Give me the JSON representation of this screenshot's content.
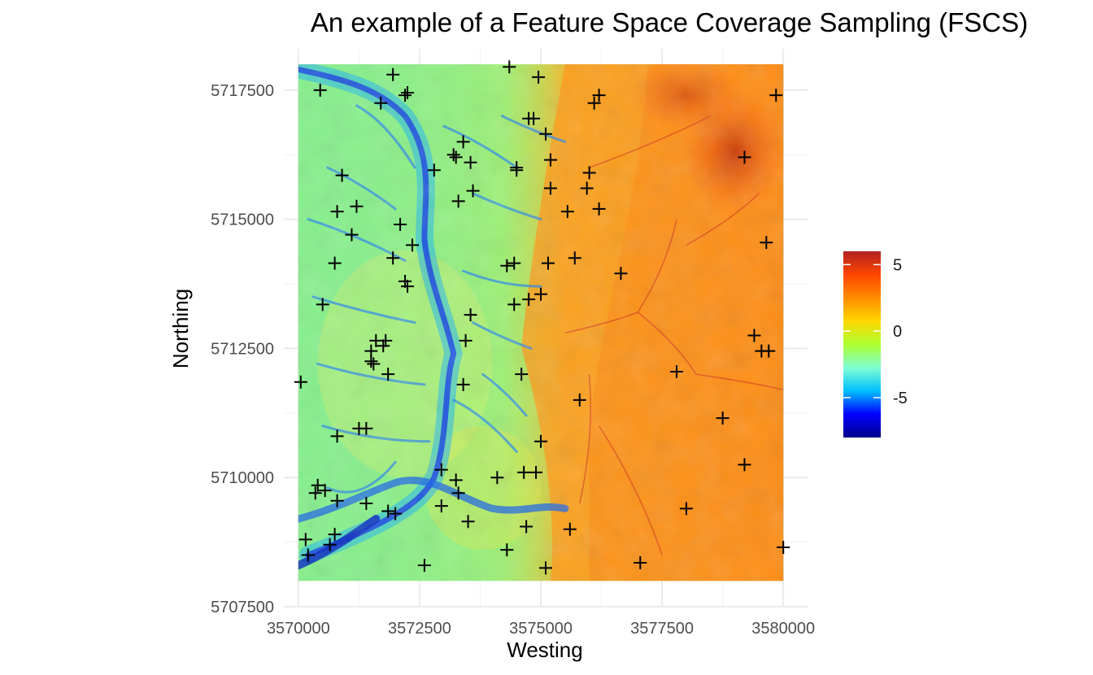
{
  "chart_data": {
    "type": "scatter",
    "title": "An example of a Feature Space Coverage Sampling (FSCS)",
    "xlabel": "Westing",
    "ylabel": "Northing",
    "xlim": [
      3569700,
      3580500
    ],
    "ylim": [
      5707500,
      5718300
    ],
    "x_ticks": [
      3570000,
      3572500,
      3575000,
      3577500,
      3580000
    ],
    "x_tick_labels": [
      "3570000",
      "3572500",
      "3575000",
      "3577500",
      "3580000"
    ],
    "y_ticks": [
      5707500,
      5710000,
      5712500,
      5715000,
      5717500
    ],
    "y_tick_labels": [
      "5707500",
      "5710000",
      "5712500",
      "5715000",
      "5717500"
    ],
    "raster_extent": {
      "x": [
        3570000,
        3580000
      ],
      "y": [
        5708000,
        5718000
      ]
    },
    "grid": true,
    "marker": "plus",
    "colorbar": {
      "range": [
        -8,
        6
      ],
      "ticks": [
        5,
        0,
        -5
      ],
      "tick_labels": [
        "5",
        "0",
        "-5"
      ],
      "colors": [
        "#00008b",
        "#0000ff",
        "#00bfff",
        "#7fffd4",
        "#adff2f",
        "#ffd700",
        "#ff8c00",
        "#ff4500",
        "#b22222"
      ],
      "placement": "right"
    },
    "samples": [
      [
        3570050,
        5711850
      ],
      [
        3570150,
        5708800
      ],
      [
        3570200,
        5708500
      ],
      [
        3570350,
        5709700
      ],
      [
        3570400,
        5709850
      ],
      [
        3570550,
        5709750
      ],
      [
        3570450,
        5717500
      ],
      [
        3570500,
        5713350
      ],
      [
        3570650,
        5708700
      ],
      [
        3570750,
        5708900
      ],
      [
        3570800,
        5709550
      ],
      [
        3570800,
        5710800
      ],
      [
        3570750,
        5714150
      ],
      [
        3570800,
        5715150
      ],
      [
        3570900,
        5715850
      ],
      [
        3571100,
        5714700
      ],
      [
        3571200,
        5715250
      ],
      [
        3571250,
        5710950
      ],
      [
        3571400,
        5710950
      ],
      [
        3571400,
        5709500
      ],
      [
        3571500,
        5712450
      ],
      [
        3571500,
        5712250
      ],
      [
        3571550,
        5712200
      ],
      [
        3571600,
        5712650
      ],
      [
        3571750,
        5712550
      ],
      [
        3571800,
        5712650
      ],
      [
        3571850,
        5712000
      ],
      [
        3571700,
        5717250
      ],
      [
        3571850,
        5709350
      ],
      [
        3571950,
        5714250
      ],
      [
        3572000,
        5709300
      ],
      [
        3571950,
        5717800
      ],
      [
        3572100,
        5714900
      ],
      [
        3572200,
        5717400
      ],
      [
        3572250,
        5717450
      ],
      [
        3572200,
        5713800
      ],
      [
        3572250,
        5713700
      ],
      [
        3572350,
        5714500
      ],
      [
        3572600,
        5708300
      ],
      [
        3572800,
        5715950
      ],
      [
        3572950,
        5710150
      ],
      [
        3572950,
        5709450
      ],
      [
        3573250,
        5709950
      ],
      [
        3573300,
        5709700
      ],
      [
        3573250,
        5716200
      ],
      [
        3573200,
        5716250
      ],
      [
        3573300,
        5715350
      ],
      [
        3573400,
        5716500
      ],
      [
        3573400,
        5711800
      ],
      [
        3573450,
        5712650
      ],
      [
        3573500,
        5709150
      ],
      [
        3573550,
        5713150
      ],
      [
        3573550,
        5716100
      ],
      [
        3573600,
        5715550
      ],
      [
        3574100,
        5710000
      ],
      [
        3574300,
        5708600
      ],
      [
        3574300,
        5714100
      ],
      [
        3574350,
        5717950
      ],
      [
        3574450,
        5713350
      ],
      [
        3574450,
        5714150
      ],
      [
        3574500,
        5716000
      ],
      [
        3574500,
        5715950
      ],
      [
        3574600,
        5712000
      ],
      [
        3574650,
        5710100
      ],
      [
        3574700,
        5709050
      ],
      [
        3574750,
        5716950
      ],
      [
        3574750,
        5713450
      ],
      [
        3574850,
        5716950
      ],
      [
        3574900,
        5710100
      ],
      [
        3574950,
        5717750
      ],
      [
        3575000,
        5713550
      ],
      [
        3575000,
        5710700
      ],
      [
        3575100,
        5708250
      ],
      [
        3575100,
        5716650
      ],
      [
        3575150,
        5714150
      ],
      [
        3575200,
        5716150
      ],
      [
        3575200,
        5715600
      ],
      [
        3575600,
        5709000
      ],
      [
        3575550,
        5715150
      ],
      [
        3575700,
        5714250
      ],
      [
        3575800,
        5711500
      ],
      [
        3575950,
        5715600
      ],
      [
        3576000,
        5715900
      ],
      [
        3576100,
        5717250
      ],
      [
        3576200,
        5717400
      ],
      [
        3576200,
        5715200
      ],
      [
        3576650,
        5713950
      ],
      [
        3577050,
        5708350
      ],
      [
        3577800,
        5712050
      ],
      [
        3578000,
        5709400
      ],
      [
        3578750,
        5711150
      ],
      [
        3579200,
        5710250
      ],
      [
        3579200,
        5716200
      ],
      [
        3579400,
        5712750
      ],
      [
        3579550,
        5712450
      ],
      [
        3579650,
        5714550
      ],
      [
        3579700,
        5712450
      ],
      [
        3579850,
        5717400
      ],
      [
        3580000,
        5708650
      ]
    ]
  }
}
